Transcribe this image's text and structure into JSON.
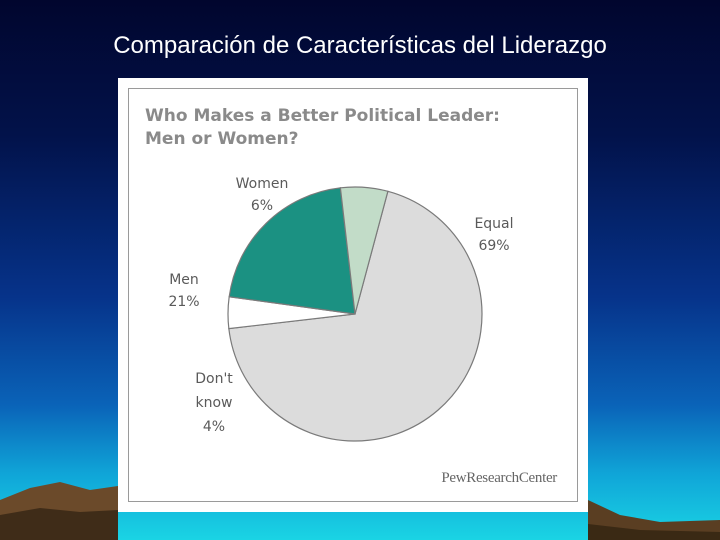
{
  "slide": {
    "title": "Comparación de Características del Liderazgo"
  },
  "chart_data": {
    "type": "pie",
    "title": "Who Makes a Better Political Leader:",
    "subtitle": "Men or Women?",
    "slices": [
      {
        "label": "Equal",
        "value_label": "69%",
        "value": 69,
        "color": "#dcdcdc"
      },
      {
        "label": "Don't know",
        "value_label": "4%",
        "value": 4,
        "color": "#ffffff"
      },
      {
        "label": "Men",
        "value_label": "21%",
        "value": 21,
        "color": "#1b9182"
      },
      {
        "label": "Women",
        "value_label": "6%",
        "value": 6,
        "color": "#c2dcc8"
      }
    ],
    "source": "PewResearchCenter"
  }
}
